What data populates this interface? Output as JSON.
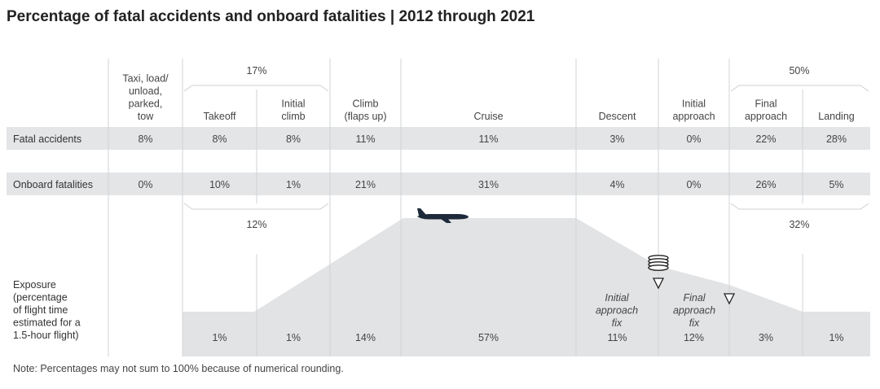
{
  "title": "Percentage of fatal accidents and onboard fatalities | 2012 through 2021",
  "note": "Note: Percentages may not sum to 100% because of numerical rounding.",
  "chart_data": {
    "type": "table",
    "phases": [
      {
        "key": "taxi",
        "label": [
          "Taxi, load/",
          "unload,",
          "parked,",
          "tow"
        ]
      },
      {
        "key": "takeoff",
        "label": [
          "Takeoff"
        ]
      },
      {
        "key": "initial_climb",
        "label": [
          "Initial",
          "climb"
        ]
      },
      {
        "key": "climb",
        "label": [
          "Climb",
          "(flaps up)"
        ]
      },
      {
        "key": "cruise",
        "label": [
          "Cruise"
        ]
      },
      {
        "key": "descent",
        "label": [
          "Descent"
        ]
      },
      {
        "key": "initial_approach",
        "label": [
          "Initial",
          "approach"
        ]
      },
      {
        "key": "final_approach",
        "label": [
          "Final",
          "approach"
        ]
      },
      {
        "key": "landing",
        "label": [
          "Landing"
        ]
      }
    ],
    "rows": [
      {
        "label": [
          "Fatal accidents"
        ],
        "values": [
          "8%",
          "8%",
          "8%",
          "11%",
          "11%",
          "3%",
          "0%",
          "22%",
          "28%"
        ]
      },
      {
        "label": [
          "Onboard fatalities"
        ],
        "values": [
          "0%",
          "10%",
          "1%",
          "21%",
          "31%",
          "4%",
          "0%",
          "26%",
          "5%"
        ]
      },
      {
        "label": [
          "Exposure",
          "(percentage",
          "of flight time",
          "estimated for a",
          "1.5-hour flight)"
        ],
        "values": [
          "",
          "1%",
          "1%",
          "14%",
          "57%",
          "11%",
          "12%",
          "3%",
          "1%"
        ]
      }
    ],
    "groups": [
      {
        "label": "17%",
        "row": "Fatal accidents",
        "phases": [
          "takeoff",
          "initial_climb"
        ]
      },
      {
        "label": "50%",
        "row": "Fatal accidents",
        "phases": [
          "final_approach",
          "landing"
        ]
      },
      {
        "label": "12%",
        "row": "Onboard fatalities",
        "phases": [
          "takeoff",
          "initial_climb"
        ]
      },
      {
        "label": "32%",
        "row": "Onboard fatalities",
        "phases": [
          "final_approach",
          "landing"
        ]
      }
    ],
    "fix_labels": [
      {
        "label": [
          "Initial",
          "approach",
          "fix"
        ]
      },
      {
        "label": [
          "Final",
          "approach",
          "fix"
        ]
      }
    ]
  },
  "colors": {
    "band": "#e4e5e7",
    "profile": "#e2e3e5",
    "lines": "#d2d3d5",
    "bracket": "#cfd0d2",
    "aircraft": "#1d2a3a",
    "text": "#444444"
  },
  "icons": [
    "aircraft-icon",
    "holding-pattern-icon",
    "initial-approach-fix-icon",
    "final-approach-fix-icon"
  ]
}
